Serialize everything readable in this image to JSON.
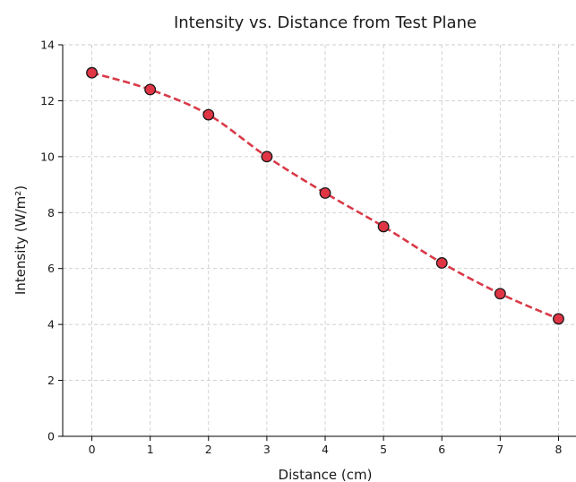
{
  "chart_data": {
    "type": "line",
    "title": "Intensity vs. Distance from Test Plane",
    "xlabel": "Distance (cm)",
    "ylabel": "Intensity (W/m²)",
    "x": [
      0,
      1,
      2,
      3,
      4,
      5,
      6,
      7,
      8
    ],
    "series": [
      {
        "values": [
          13.0,
          12.4,
          11.5,
          10.0,
          8.7,
          7.5,
          6.2,
          5.1,
          4.2
        ]
      }
    ],
    "xlim": [
      -0.5,
      8.3
    ],
    "ylim": [
      0,
      14
    ],
    "xticks": [
      0,
      1,
      2,
      3,
      4,
      5,
      6,
      7,
      8
    ],
    "yticks": [
      0,
      2,
      4,
      6,
      8,
      10,
      12,
      14
    ],
    "grid": true,
    "line_style": "dashed",
    "marker": "circle",
    "colors": {
      "line": "#d93a48",
      "marker_fill": "#e03545",
      "marker_edge": "#1a1a1a",
      "grid": "#cccccc"
    }
  }
}
